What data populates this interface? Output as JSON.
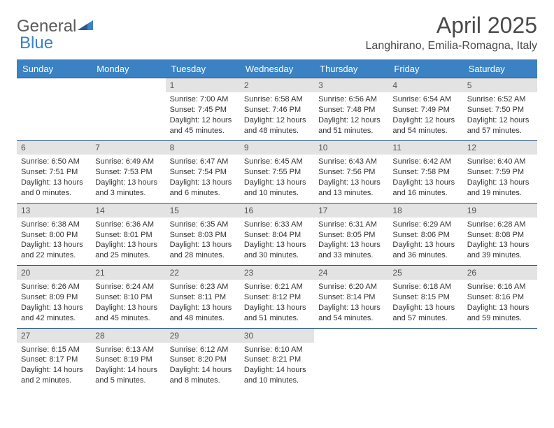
{
  "logo": {
    "text1": "General",
    "text2": "Blue"
  },
  "title": "April 2025",
  "location": "Langhirano, Emilia-Romagna, Italy",
  "colors": {
    "header_bg": "#3b82c4",
    "header_text": "#ffffff",
    "daynum_bg": "#e3e3e3",
    "border": "#2a5a8a",
    "title_color": "#4a4a4a",
    "body_text": "#333333"
  },
  "fonts": {
    "title_size": 32,
    "location_size": 16,
    "dow_size": 13,
    "daynum_size": 12,
    "body_size": 11
  },
  "daysOfWeek": [
    "Sunday",
    "Monday",
    "Tuesday",
    "Wednesday",
    "Thursday",
    "Friday",
    "Saturday"
  ],
  "weeks": [
    [
      {
        "blank": true
      },
      {
        "blank": true
      },
      {
        "num": "1",
        "sunrise": "Sunrise: 7:00 AM",
        "sunset": "Sunset: 7:45 PM",
        "daylight": "Daylight: 12 hours and 45 minutes."
      },
      {
        "num": "2",
        "sunrise": "Sunrise: 6:58 AM",
        "sunset": "Sunset: 7:46 PM",
        "daylight": "Daylight: 12 hours and 48 minutes."
      },
      {
        "num": "3",
        "sunrise": "Sunrise: 6:56 AM",
        "sunset": "Sunset: 7:48 PM",
        "daylight": "Daylight: 12 hours and 51 minutes."
      },
      {
        "num": "4",
        "sunrise": "Sunrise: 6:54 AM",
        "sunset": "Sunset: 7:49 PM",
        "daylight": "Daylight: 12 hours and 54 minutes."
      },
      {
        "num": "5",
        "sunrise": "Sunrise: 6:52 AM",
        "sunset": "Sunset: 7:50 PM",
        "daylight": "Daylight: 12 hours and 57 minutes."
      }
    ],
    [
      {
        "num": "6",
        "sunrise": "Sunrise: 6:50 AM",
        "sunset": "Sunset: 7:51 PM",
        "daylight": "Daylight: 13 hours and 0 minutes."
      },
      {
        "num": "7",
        "sunrise": "Sunrise: 6:49 AM",
        "sunset": "Sunset: 7:53 PM",
        "daylight": "Daylight: 13 hours and 3 minutes."
      },
      {
        "num": "8",
        "sunrise": "Sunrise: 6:47 AM",
        "sunset": "Sunset: 7:54 PM",
        "daylight": "Daylight: 13 hours and 6 minutes."
      },
      {
        "num": "9",
        "sunrise": "Sunrise: 6:45 AM",
        "sunset": "Sunset: 7:55 PM",
        "daylight": "Daylight: 13 hours and 10 minutes."
      },
      {
        "num": "10",
        "sunrise": "Sunrise: 6:43 AM",
        "sunset": "Sunset: 7:56 PM",
        "daylight": "Daylight: 13 hours and 13 minutes."
      },
      {
        "num": "11",
        "sunrise": "Sunrise: 6:42 AM",
        "sunset": "Sunset: 7:58 PM",
        "daylight": "Daylight: 13 hours and 16 minutes."
      },
      {
        "num": "12",
        "sunrise": "Sunrise: 6:40 AM",
        "sunset": "Sunset: 7:59 PM",
        "daylight": "Daylight: 13 hours and 19 minutes."
      }
    ],
    [
      {
        "num": "13",
        "sunrise": "Sunrise: 6:38 AM",
        "sunset": "Sunset: 8:00 PM",
        "daylight": "Daylight: 13 hours and 22 minutes."
      },
      {
        "num": "14",
        "sunrise": "Sunrise: 6:36 AM",
        "sunset": "Sunset: 8:01 PM",
        "daylight": "Daylight: 13 hours and 25 minutes."
      },
      {
        "num": "15",
        "sunrise": "Sunrise: 6:35 AM",
        "sunset": "Sunset: 8:03 PM",
        "daylight": "Daylight: 13 hours and 28 minutes."
      },
      {
        "num": "16",
        "sunrise": "Sunrise: 6:33 AM",
        "sunset": "Sunset: 8:04 PM",
        "daylight": "Daylight: 13 hours and 30 minutes."
      },
      {
        "num": "17",
        "sunrise": "Sunrise: 6:31 AM",
        "sunset": "Sunset: 8:05 PM",
        "daylight": "Daylight: 13 hours and 33 minutes."
      },
      {
        "num": "18",
        "sunrise": "Sunrise: 6:29 AM",
        "sunset": "Sunset: 8:06 PM",
        "daylight": "Daylight: 13 hours and 36 minutes."
      },
      {
        "num": "19",
        "sunrise": "Sunrise: 6:28 AM",
        "sunset": "Sunset: 8:08 PM",
        "daylight": "Daylight: 13 hours and 39 minutes."
      }
    ],
    [
      {
        "num": "20",
        "sunrise": "Sunrise: 6:26 AM",
        "sunset": "Sunset: 8:09 PM",
        "daylight": "Daylight: 13 hours and 42 minutes."
      },
      {
        "num": "21",
        "sunrise": "Sunrise: 6:24 AM",
        "sunset": "Sunset: 8:10 PM",
        "daylight": "Daylight: 13 hours and 45 minutes."
      },
      {
        "num": "22",
        "sunrise": "Sunrise: 6:23 AM",
        "sunset": "Sunset: 8:11 PM",
        "daylight": "Daylight: 13 hours and 48 minutes."
      },
      {
        "num": "23",
        "sunrise": "Sunrise: 6:21 AM",
        "sunset": "Sunset: 8:12 PM",
        "daylight": "Daylight: 13 hours and 51 minutes."
      },
      {
        "num": "24",
        "sunrise": "Sunrise: 6:20 AM",
        "sunset": "Sunset: 8:14 PM",
        "daylight": "Daylight: 13 hours and 54 minutes."
      },
      {
        "num": "25",
        "sunrise": "Sunrise: 6:18 AM",
        "sunset": "Sunset: 8:15 PM",
        "daylight": "Daylight: 13 hours and 57 minutes."
      },
      {
        "num": "26",
        "sunrise": "Sunrise: 6:16 AM",
        "sunset": "Sunset: 8:16 PM",
        "daylight": "Daylight: 13 hours and 59 minutes."
      }
    ],
    [
      {
        "num": "27",
        "sunrise": "Sunrise: 6:15 AM",
        "sunset": "Sunset: 8:17 PM",
        "daylight": "Daylight: 14 hours and 2 minutes."
      },
      {
        "num": "28",
        "sunrise": "Sunrise: 6:13 AM",
        "sunset": "Sunset: 8:19 PM",
        "daylight": "Daylight: 14 hours and 5 minutes."
      },
      {
        "num": "29",
        "sunrise": "Sunrise: 6:12 AM",
        "sunset": "Sunset: 8:20 PM",
        "daylight": "Daylight: 14 hours and 8 minutes."
      },
      {
        "num": "30",
        "sunrise": "Sunrise: 6:10 AM",
        "sunset": "Sunset: 8:21 PM",
        "daylight": "Daylight: 14 hours and 10 minutes."
      },
      {
        "blank": true
      },
      {
        "blank": true
      },
      {
        "blank": true
      }
    ]
  ]
}
